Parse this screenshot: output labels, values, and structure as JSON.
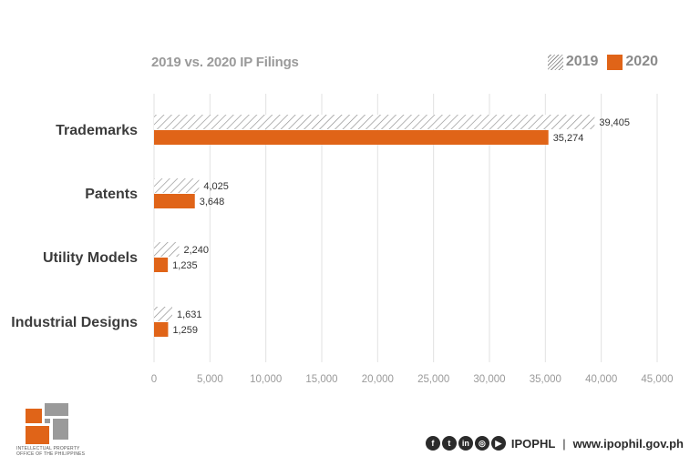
{
  "chart_data": {
    "type": "bar",
    "orientation": "horizontal",
    "title": "2019 vs. 2020 IP Filings",
    "categories": [
      "Trademarks",
      "Patents",
      "Utility Models",
      "Industrial Designs"
    ],
    "series": [
      {
        "name": "2019",
        "values": [
          39405,
          4025,
          2240,
          1631
        ],
        "labels": [
          "39,405",
          "4,025",
          "2,240",
          "1,631"
        ],
        "style": "hatched",
        "color": "#8c8c8c"
      },
      {
        "name": "2020",
        "values": [
          35274,
          3648,
          1235,
          1259
        ],
        "labels": [
          "35,274",
          "3,648",
          "1,235",
          "1,259"
        ],
        "style": "solid",
        "color": "#e06418"
      }
    ],
    "xlim": [
      0,
      45000
    ],
    "xticks": [
      0,
      5000,
      10000,
      15000,
      20000,
      25000,
      30000,
      35000,
      40000,
      45000
    ],
    "xtick_labels": [
      "0",
      "5,000",
      "10,000",
      "15,000",
      "20,000",
      "25,000",
      "30,000",
      "35,000",
      "40,000",
      "45,000"
    ],
    "grid": "vertical",
    "legend_position": "top-right",
    "xlabel": "",
    "ylabel": ""
  },
  "logo": {
    "text_line1": "INTELLECTUAL PROPERTY",
    "text_line2": "OFFICE OF THE PHILIPPINES",
    "colors": [
      "#e06418",
      "#9a9a9a"
    ]
  },
  "footer": {
    "social_icons": [
      {
        "name": "facebook-icon",
        "glyph": "f"
      },
      {
        "name": "twitter-icon",
        "glyph": "t"
      },
      {
        "name": "linkedin-icon",
        "glyph": "in"
      },
      {
        "name": "instagram-icon",
        "glyph": "◎"
      },
      {
        "name": "youtube-icon",
        "glyph": "▶"
      }
    ],
    "handle": "IPOPHL",
    "separator": "|",
    "website": "www.ipophil.gov.ph"
  }
}
